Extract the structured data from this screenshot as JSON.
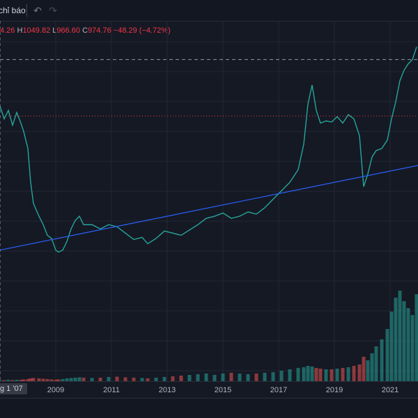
{
  "toolbar": {
    "indicators_label": "chỉ báo",
    "undo_icon": "undo-icon",
    "redo_icon": "redo-icon"
  },
  "ohlc": {
    "open_label": "",
    "open_value": "4.26",
    "high_label": "H",
    "high_value": "1049.82",
    "low_label": "L",
    "low_value": "966.60",
    "close_label": "C",
    "close_value": "974.76",
    "change": "−48.29 (−4.72%)"
  },
  "colors": {
    "up": "#26a69a",
    "down": "#ef5350",
    "trendline": "#2962ff",
    "background": "#151924",
    "grid": "#232734"
  },
  "chart_data": {
    "type": "line",
    "x_ticks": [
      "2009",
      "2011",
      "2013",
      "2015",
      "2017",
      "2019",
      "2021"
    ],
    "crosshair_date_label": "g 1 '07",
    "x": [
      2007.0,
      2007.15,
      2007.3,
      2007.45,
      2007.6,
      2007.75,
      2007.85,
      2008.0,
      2008.1,
      2008.2,
      2008.4,
      2008.55,
      2008.7,
      2008.85,
      2009.0,
      2009.1,
      2009.25,
      2009.4,
      2009.55,
      2009.7,
      2009.85,
      2010.0,
      2010.3,
      2010.6,
      2010.9,
      2011.2,
      2011.5,
      2011.8,
      2012.1,
      2012.3,
      2012.6,
      2012.9,
      2013.2,
      2013.5,
      2013.8,
      2014.1,
      2014.4,
      2014.7,
      2015.0,
      2015.3,
      2015.6,
      2015.9,
      2016.2,
      2016.5,
      2016.8,
      2017.1,
      2017.4,
      2017.7,
      2017.9,
      2018.05,
      2018.2,
      2018.35,
      2018.5,
      2018.7,
      2018.9,
      2019.1,
      2019.3,
      2019.5,
      2019.7,
      2019.9,
      2020.05,
      2020.2,
      2020.35,
      2020.5,
      2020.7,
      2020.9,
      2021.05,
      2021.2,
      2021.35,
      2021.5,
      2021.65,
      2021.8,
      2021.95
    ],
    "y": [
      1080,
      1020,
      1060,
      990,
      1050,
      1000,
      960,
      880,
      720,
      620,
      560,
      520,
      470,
      455,
      400,
      390,
      400,
      440,
      500,
      540,
      560,
      520,
      520,
      500,
      520,
      510,
      480,
      450,
      460,
      430,
      455,
      490,
      480,
      470,
      495,
      520,
      550,
      560,
      575,
      550,
      560,
      580,
      570,
      600,
      640,
      680,
      720,
      780,
      900,
      1090,
      1180,
      1060,
      1000,
      1010,
      1005,
      1030,
      1000,
      1040,
      1020,
      940,
      700,
      760,
      840,
      870,
      880,
      920,
      1020,
      1100,
      1200,
      1250,
      1280,
      1300,
      1360
    ],
    "volume": [
      3,
      3,
      4,
      3,
      4,
      4,
      5,
      6,
      8,
      9,
      8,
      7,
      6,
      5,
      4,
      5,
      6,
      8,
      9,
      10,
      11,
      10,
      9,
      10,
      12,
      13,
      11,
      10,
      9,
      8,
      10,
      12,
      14,
      16,
      18,
      20,
      22,
      18,
      22,
      24,
      22,
      20,
      22,
      24,
      26,
      30,
      34,
      38,
      40,
      44,
      42,
      38,
      36,
      34,
      34,
      36,
      38,
      40,
      44,
      48,
      70,
      60,
      80,
      100,
      120,
      150,
      200,
      240,
      260,
      230,
      210,
      190,
      250
    ],
    "ylim": [
      300,
      1450
    ],
    "xlim": [
      2007,
      2022
    ],
    "trendline": {
      "x": [
        2007.0,
        2022.0
      ],
      "y": [
        400,
        800
      ]
    },
    "reference_lines": [
      {
        "style": "dashed",
        "color": "#9598a1",
        "y": 1300
      },
      {
        "style": "dotted",
        "color": "#f23645",
        "y": 1033
      }
    ],
    "grid": true
  }
}
